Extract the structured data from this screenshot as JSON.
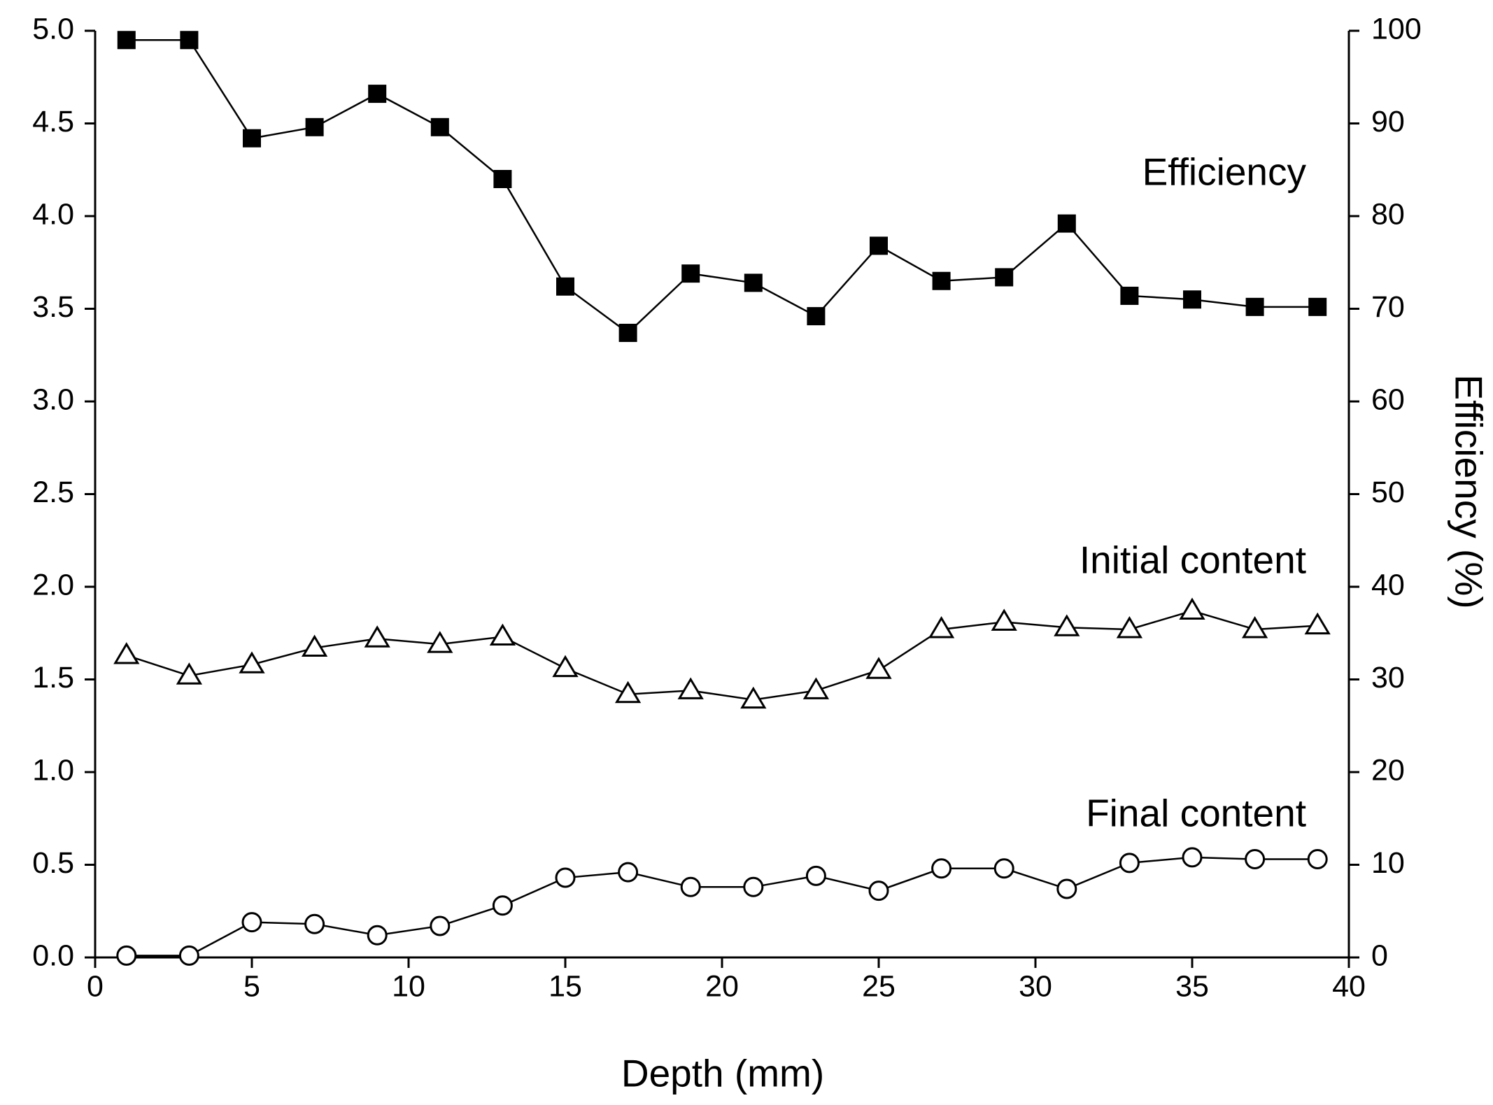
{
  "chart_data": {
    "type": "line",
    "x": [
      1,
      3,
      5,
      7,
      9,
      11,
      13,
      15,
      17,
      19,
      21,
      23,
      25,
      27,
      29,
      31,
      33,
      35,
      37,
      39
    ],
    "series": [
      {
        "name": "Efficiency",
        "axis": "y2",
        "marker": "square",
        "color": "#000000",
        "values": [
          99,
          99,
          88.4,
          89.6,
          93.2,
          89.6,
          84,
          72.4,
          67.4,
          73.8,
          72.8,
          69.2,
          76.8,
          73,
          73.4,
          79.2,
          71.4,
          71,
          70.2,
          70.2
        ]
      },
      {
        "name": "Initial content",
        "marker": "triangle",
        "color": "#000000",
        "values": [
          1.63,
          1.52,
          1.58,
          1.67,
          1.72,
          1.69,
          1.73,
          1.56,
          1.42,
          1.44,
          1.39,
          1.44,
          1.55,
          1.77,
          1.81,
          1.78,
          1.77,
          1.87,
          1.77,
          1.79
        ]
      },
      {
        "name": "Final content",
        "marker": "circle",
        "color": "#000000",
        "values": [
          0.01,
          0.01,
          0.19,
          0.18,
          0.12,
          0.17,
          0.28,
          0.43,
          0.46,
          0.38,
          0.38,
          0.44,
          0.36,
          0.48,
          0.48,
          0.37,
          0.51,
          0.54,
          0.53,
          0.53
        ]
      }
    ],
    "x_label": "Depth (mm)",
    "y2_label": "Efficiency (%)",
    "xlim": [
      0,
      40
    ],
    "xticks": [
      0,
      5,
      10,
      15,
      20,
      25,
      30,
      35,
      40
    ],
    "ylim": [
      0,
      5
    ],
    "yticks": [
      {
        "value": 0,
        "label": "0.0"
      },
      0.5,
      {
        "value": 1,
        "label": "1.0"
      },
      1.5,
      {
        "value": 2,
        "label": "2.0"
      },
      2.5,
      {
        "value": 3,
        "label": "3.0"
      },
      3.5,
      {
        "value": 4,
        "label": "4.0"
      },
      4.5,
      {
        "value": 5,
        "label": "5.0"
      }
    ],
    "y2lim": [
      0,
      100
    ],
    "y2ticks": [
      0,
      10,
      20,
      30,
      40,
      50,
      60,
      70,
      80,
      90,
      100
    ],
    "grid": false
  }
}
